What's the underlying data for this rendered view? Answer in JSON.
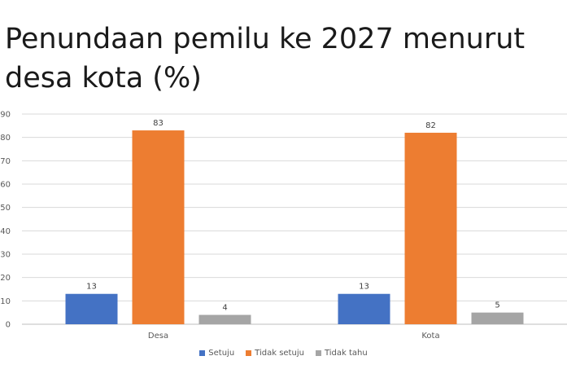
{
  "title": "Penundaan pemilu ke 2027 menurut desa kota (%)",
  "chart_data": {
    "type": "bar",
    "title": "Penundaan pemilu ke 2027 menurut desa kota (%)",
    "categories": [
      "Desa",
      "Kota"
    ],
    "series": [
      {
        "name": "Setuju",
        "color": "#4472C4",
        "values": [
          13,
          13
        ]
      },
      {
        "name": "Tidak setuju",
        "color": "#ED7D31",
        "values": [
          83,
          82
        ]
      },
      {
        "name": "Tidak tahu",
        "color": "#A5A5A5",
        "values": [
          4,
          5
        ]
      }
    ],
    "ylim": [
      0,
      90
    ],
    "yticks": [
      0,
      10,
      20,
      30,
      40,
      50,
      60,
      70,
      80,
      90
    ],
    "grid": true,
    "legend_position": "bottom",
    "data_labels": true
  }
}
